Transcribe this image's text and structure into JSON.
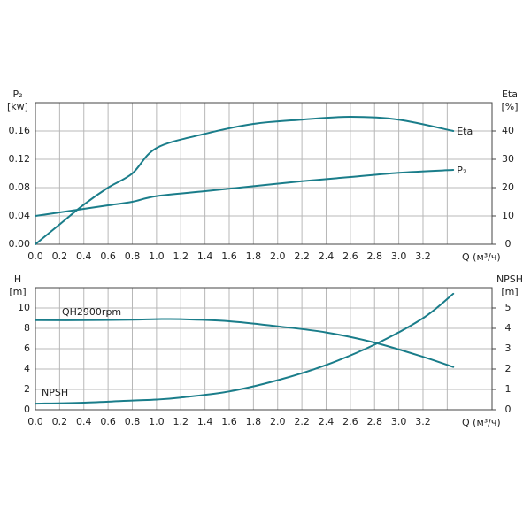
{
  "chart_data": [
    {
      "type": "line",
      "ylabel": [
        "P₂",
        "[kw]"
      ],
      "y2label": [
        "Eta",
        "[%]"
      ],
      "xlabel": "Q (м³/ч)",
      "x": [
        0,
        0.2,
        0.4,
        0.6,
        0.8,
        1.0,
        1.4,
        1.8,
        2.2,
        2.6,
        3.0,
        3.45
      ],
      "series": [
        {
          "name": "Eta",
          "color": "#1a7d8a",
          "axis": "y2",
          "values": [
            0,
            7,
            14,
            20,
            25,
            34,
            39,
            42.5,
            44,
            45,
            44,
            40
          ]
        },
        {
          "name": "P₂",
          "color": "#1a7d8a",
          "values": [
            0.04,
            0.045,
            0.05,
            0.055,
            0.06,
            0.068,
            0.075,
            0.082,
            0.089,
            0.095,
            0.101,
            0.105
          ]
        }
      ],
      "xlim": [
        0,
        3.77
      ],
      "xticks": [
        {
          "value": 0,
          "label": "0.0"
        },
        0.2,
        0.4,
        0.6,
        0.8,
        {
          "value": 1,
          "label": "1.0"
        },
        1.2,
        1.4,
        1.6,
        1.8,
        {
          "value": 2,
          "label": "2.0"
        },
        2.2,
        2.4,
        2.6,
        2.8,
        {
          "value": 3,
          "label": "3.0"
        },
        3.2,
        {
          "value": 3.4
        }
      ],
      "ylim": [
        0,
        0.2
      ],
      "yticks": [
        {
          "value": 0,
          "label": "0.00"
        },
        0.04,
        0.08,
        0.12,
        0.16
      ],
      "y2lim": [
        0,
        50
      ],
      "y2ticks": [
        0,
        10,
        20,
        30,
        40
      ],
      "grid": true
    },
    {
      "type": "line",
      "ylabel": [
        "H",
        "[m]"
      ],
      "y2label": [
        "NPSH",
        "[m]"
      ],
      "xlabel": "Q (м³/ч)",
      "x": [
        0,
        0.4,
        0.8,
        1.0,
        1.2,
        1.6,
        2.0,
        2.4,
        2.8,
        3.2,
        3.45
      ],
      "series": [
        {
          "name": "QH2900rpm",
          "color": "#1a7d8a",
          "values": [
            8.8,
            8.8,
            8.85,
            8.9,
            8.9,
            8.7,
            8.2,
            7.6,
            6.6,
            5.2,
            4.2
          ]
        },
        {
          "name": "NPSH",
          "color": "#1a7d8a",
          "axis": "y2",
          "values": [
            0.3,
            0.35,
            0.45,
            0.5,
            0.6,
            0.9,
            1.45,
            2.2,
            3.2,
            4.5,
            5.7
          ]
        }
      ],
      "xlim": [
        0,
        3.77
      ],
      "xticks": [
        {
          "value": 0,
          "label": "0.0"
        },
        0.2,
        0.4,
        0.6,
        0.8,
        {
          "value": 1,
          "label": "1.0"
        },
        1.2,
        1.4,
        1.6,
        1.8,
        {
          "value": 2,
          "label": "2.0"
        },
        2.2,
        2.4,
        2.6,
        2.8,
        {
          "value": 3,
          "label": "3.0"
        },
        3.2,
        {
          "value": 3.4
        }
      ],
      "ylim": [
        0,
        12
      ],
      "yticks": [
        0,
        2,
        4,
        6,
        8,
        10
      ],
      "y2lim": [
        0,
        6
      ],
      "y2ticks": [
        0,
        1,
        2,
        3,
        4,
        5
      ],
      "grid": true
    }
  ]
}
